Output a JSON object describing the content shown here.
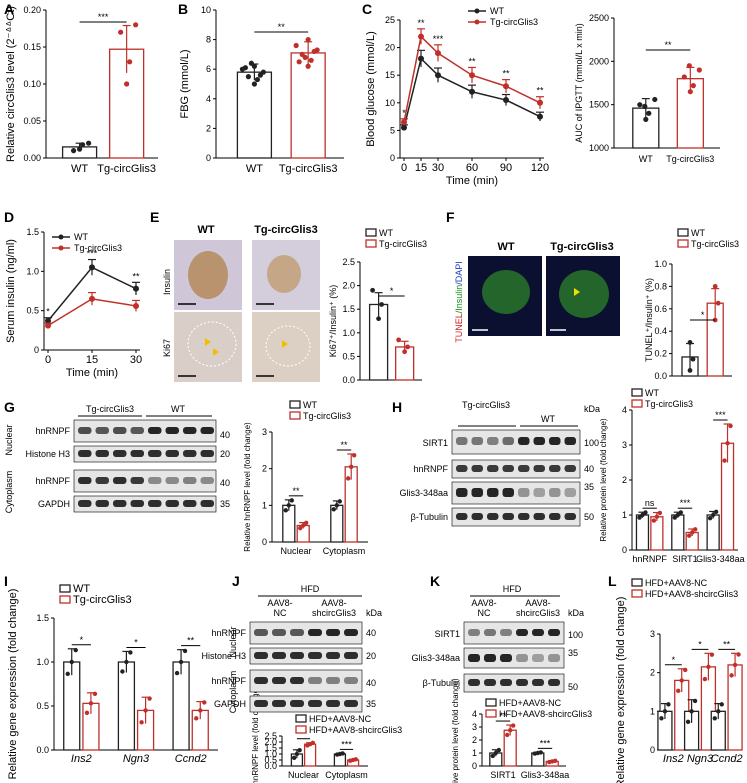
{
  "colors": {
    "wt": "#222222",
    "tg": "#c0302a",
    "blot_bg": "#e6e6e6",
    "if_bg": "#0b1030",
    "ihc_bg": "#d8cfd6"
  },
  "panels": {
    "A": {
      "letter": "A",
      "ylabel": "Relative circGlis3 level (2⁻ᐞᐞCt)",
      "sig": "***",
      "chart_data": {
        "type": "bar",
        "categories": [
          "WT",
          "Tg-circGlis3"
        ],
        "values": [
          0.015,
          0.147
        ],
        "errors": [
          0.005,
          0.032
        ],
        "points": [
          [
            0.012,
            0.018,
            0.01,
            0.02
          ],
          [
            0.1,
            0.13,
            0.17,
            0.18
          ]
        ],
        "ylim": [
          0,
          0.2
        ],
        "yticks": [
          "0.00",
          "0.05",
          "0.10",
          "0.15",
          "0.20"
        ]
      }
    },
    "B": {
      "letter": "B",
      "ylabel": "FBG (mmol/L)",
      "sig": "**",
      "chart_data": {
        "type": "bar",
        "categories": [
          "WT",
          "Tg-circGlis3"
        ],
        "values": [
          5.8,
          7.1
        ],
        "errors": [
          0.55,
          0.75
        ],
        "points": [
          [
            5.0,
            5.3,
            5.5,
            5.8,
            6.0,
            6.2,
            6.4,
            5.6,
            6.1
          ],
          [
            6.2,
            6.6,
            7.0,
            7.3,
            7.6,
            8.0,
            6.8,
            7.2,
            6.5
          ]
        ],
        "ylim": [
          0,
          10
        ],
        "yticks": [
          "0",
          "2",
          "4",
          "6",
          "8",
          "10"
        ]
      }
    },
    "C": {
      "letter": "C",
      "ylabel": "Blood glucose (mmol/L)",
      "xlabel": "Time (min)",
      "legend": [
        "WT",
        "Tg-circGlis3"
      ],
      "chart_data": {
        "type": "line",
        "x": [
          0,
          15,
          30,
          60,
          90,
          120
        ],
        "series": [
          {
            "name": "WT",
            "values": [
              5.5,
              18.0,
              15.0,
              12.0,
              10.5,
              7.5
            ],
            "errors": [
              0.5,
              1.5,
              1.3,
              1.2,
              1.0,
              0.8
            ]
          },
          {
            "name": "Tg-circGlis3",
            "values": [
              6.5,
              22.0,
              19.0,
              15.0,
              13.0,
              10.0
            ],
            "errors": [
              0.6,
              1.4,
              1.5,
              1.4,
              1.2,
              1.1
            ]
          }
        ],
        "sigs": [
          "*",
          "**",
          "***",
          "**",
          "**",
          "**"
        ],
        "ylim": [
          0,
          25
        ],
        "yticks": [
          "0",
          "5",
          "10",
          "15",
          "20",
          "25"
        ],
        "xticks": [
          "0",
          "15",
          "30",
          "60",
          "90",
          "120"
        ]
      }
    },
    "C2": {
      "ylabel": "AUC of IPGTT (mmol/L x min)",
      "sig": "**",
      "chart_data": {
        "type": "bar",
        "categories": [
          "WT",
          "Tg-circGlis3"
        ],
        "values": [
          1460,
          1800
        ],
        "errors": [
          110,
          130
        ],
        "points": [
          [
            1330,
            1400,
            1500,
            1560,
            1480
          ],
          [
            1650,
            1720,
            1820,
            1900,
            1950
          ]
        ],
        "ylim": [
          1000,
          2500
        ],
        "yticks": [
          "1000",
          "1500",
          "2000",
          "2500"
        ]
      }
    },
    "D": {
      "letter": "D",
      "ylabel": "Serum insulin (ng/ml)",
      "xlabel": "Time (min)",
      "legend": [
        "WT",
        "Tg-circGlis3"
      ],
      "chart_data": {
        "type": "line",
        "x": [
          0,
          15,
          30
        ],
        "series": [
          {
            "name": "WT",
            "values": [
              0.37,
              1.05,
              0.78
            ],
            "errors": [
              0.04,
              0.1,
              0.08
            ]
          },
          {
            "name": "Tg-circGlis3",
            "values": [
              0.31,
              0.65,
              0.56
            ],
            "errors": [
              0.03,
              0.08,
              0.07
            ]
          }
        ],
        "sigs": [
          "*",
          "***",
          "**"
        ],
        "ylim": [
          0,
          1.5
        ],
        "yticks": [
          "0",
          "0.5",
          "1.0",
          "1.5"
        ],
        "xticks": [
          "0",
          "15",
          "30"
        ]
      }
    },
    "E": {
      "letter": "E",
      "col_wt": "WT",
      "col_tg": "Tg-circGlis3",
      "row1": "Insulin",
      "row2": "Ki67",
      "legend": [
        "WT",
        "Tg-circGlis3"
      ],
      "ylabel": "Ki67⁺/Insulin⁺ (%)",
      "sig": "*",
      "chart_data": {
        "type": "bar",
        "categories": [
          "WT",
          "Tg-circGlis3"
        ],
        "values": [
          1.6,
          0.7
        ],
        "errors": [
          0.25,
          0.12
        ],
        "points": [
          [
            1.3,
            1.6,
            1.9
          ],
          [
            0.6,
            0.7,
            0.85
          ]
        ],
        "ylim": [
          0,
          2.5
        ],
        "yticks": [
          "0.0",
          "0.5",
          "1.0",
          "1.5",
          "2.0",
          "2.5"
        ]
      }
    },
    "F": {
      "letter": "F",
      "col_wt": "WT",
      "col_tg": "Tg-circGlis3",
      "side_tunel": "TUNEL",
      "side_ins": "/Insulin",
      "side_dapi": "/DAPI",
      "legend": [
        "WT",
        "Tg-circGlis3"
      ],
      "ylabel": "TUNEL⁺/Insulin⁺ (%)",
      "sig": "*",
      "chart_data": {
        "type": "bar",
        "categories": [
          "WT",
          "Tg-circGlis3"
        ],
        "values": [
          0.17,
          0.65
        ],
        "errors": [
          0.12,
          0.13
        ],
        "points": [
          [
            0.05,
            0.15,
            0.3
          ],
          [
            0.5,
            0.65,
            0.8
          ]
        ],
        "ylim": [
          0,
          1.0
        ],
        "yticks": [
          "0.0",
          "0.2",
          "0.4",
          "0.6",
          "0.8",
          "1.0"
        ]
      }
    },
    "G": {
      "letter": "G",
      "groups": [
        "Tg-circGlis3",
        "WT"
      ],
      "bands": [
        "hnRNPF",
        "Histone H3",
        "hnRNPF",
        "GAPDH"
      ],
      "markers": [
        "40",
        "20",
        "40",
        "35"
      ],
      "fractions": [
        "Nuclear",
        "Cytoplasm"
      ],
      "legend": [
        "WT",
        "Tg-circGlis3"
      ],
      "ylabel": "Relative hnRNPF level (fold change)",
      "sigs": [
        "**",
        "**"
      ],
      "chart_data": {
        "type": "bar",
        "categories": [
          "Nuclear",
          "Cytoplasm"
        ],
        "series": [
          {
            "name": "WT",
            "values": [
              1.0,
              1.0
            ],
            "errors": [
              0.15,
              0.12
            ]
          },
          {
            "name": "Tg-circGlis3",
            "values": [
              0.45,
              2.05
            ],
            "errors": [
              0.08,
              0.35
            ]
          }
        ],
        "ylim": [
          0,
          3
        ],
        "yticks": [
          "0",
          "1",
          "2",
          "3"
        ]
      }
    },
    "H": {
      "letter": "H",
      "groups": [
        "Tg-circGlis3",
        "WT"
      ],
      "kda": "kDa",
      "bands": [
        "SIRT1",
        "hnRNPF",
        "Glis3-348aa",
        "β-Tubulin"
      ],
      "markers": [
        "100",
        "40",
        "35",
        "50"
      ],
      "legend": [
        "WT",
        "Tg-circGlis3"
      ],
      "ylabel": "Relative protein level (fold change)",
      "sigs": [
        "ns",
        "***",
        "***"
      ],
      "chart_data": {
        "type": "bar",
        "categories": [
          "hnRNPF",
          "SIRT1",
          "Glis3-348aa"
        ],
        "series": [
          {
            "name": "WT",
            "values": [
              1.0,
              1.0,
              1.0
            ],
            "errors": [
              0.08,
              0.08,
              0.1
            ]
          },
          {
            "name": "Tg-circGlis3",
            "values": [
              0.95,
              0.5,
              3.05
            ],
            "errors": [
              0.12,
              0.1,
              0.55
            ]
          }
        ],
        "ylim": [
          0,
          4
        ],
        "yticks": [
          "0",
          "1",
          "2",
          "3",
          "4"
        ]
      }
    },
    "I": {
      "letter": "I",
      "legend": [
        "WT",
        "Tg-circGlis3"
      ],
      "ylabel": "Relative gene expression (fold change)",
      "sigs": [
        "*",
        "*",
        "**"
      ],
      "chart_data": {
        "type": "bar",
        "categories": [
          "Ins2",
          "Ngn3",
          "Ccnd2"
        ],
        "series": [
          {
            "name": "WT",
            "values": [
              1.0,
              1.0,
              1.0
            ],
            "errors": [
              0.15,
              0.12,
              0.14
            ]
          },
          {
            "name": "Tg-circGlis3",
            "values": [
              0.53,
              0.45,
              0.45
            ],
            "errors": [
              0.12,
              0.15,
              0.1
            ]
          }
        ],
        "ylim": [
          0,
          1.5
        ],
        "yticks": [
          "0.0",
          "0.5",
          "1.0",
          "1.5"
        ]
      }
    },
    "J": {
      "letter": "J",
      "diet": "HFD",
      "grp1": "AAV8-\nNC",
      "grp1a": "AAV8-",
      "grp1b": "NC",
      "grp2a": "AAV8-",
      "grp2b": "shcircGlis3",
      "kda": "kDa",
      "bands": [
        "hnRNPF",
        "Histone H3",
        "hnRNPF",
        "GAPDH"
      ],
      "markers": [
        "40",
        "20",
        "40",
        "35"
      ],
      "fractions": [
        "Nuclear",
        "Cytoplasm"
      ],
      "legend": [
        "HFD+AAV8-NC",
        "HFD+AAV8-shcircGlis3"
      ],
      "ylabel": "Relative hnRNPF level (fold change)",
      "sigs": [
        "**",
        "***"
      ],
      "chart_data": {
        "type": "bar",
        "categories": [
          "Nuclear",
          "Cytoplasm"
        ],
        "series": [
          {
            "name": "HFD+AAV8-NC",
            "values": [
              1.0,
              1.0
            ],
            "errors": [
              0.35,
              0.05
            ]
          },
          {
            "name": "HFD+AAV8-shcircGlis3",
            "values": [
              1.82,
              0.5
            ],
            "errors": [
              0.12,
              0.06
            ]
          }
        ],
        "ylim": [
          0,
          2.5
        ],
        "yticks": [
          "0.0",
          "0.5",
          "1.0",
          "1.5",
          "2.0",
          "2.5"
        ]
      }
    },
    "K": {
      "letter": "K",
      "diet": "HFD",
      "grp1a": "AAV8-",
      "grp1b": "NC",
      "grp2a": "AAV8-",
      "grp2b": "shcircGlis3",
      "kda": "kDa",
      "bands": [
        "SIRT1",
        "Glis3-348aa",
        "β-Tubulin"
      ],
      "markers": [
        "100",
        "35",
        "50"
      ],
      "legend": [
        "HFD+AAV8-NC",
        "HFD+AAV8-shcircGlis3"
      ],
      "ylabel": "Relative protein level (fold change)",
      "sigs": [
        "**",
        "***"
      ],
      "chart_data": {
        "type": "bar",
        "categories": [
          "SIRT1",
          "Glis3-348aa"
        ],
        "series": [
          {
            "name": "HFD+AAV8-NC",
            "values": [
              1.0,
              1.0
            ],
            "errors": [
              0.25,
              0.05
            ]
          },
          {
            "name": "HFD+AAV8-shcircGlis3",
            "values": [
              2.75,
              0.35
            ],
            "errors": [
              0.4,
              0.05
            ]
          }
        ],
        "ylim": [
          0,
          4
        ],
        "yticks": [
          "0",
          "1",
          "2",
          "3",
          "4"
        ]
      }
    },
    "L": {
      "letter": "L",
      "legend": [
        "HFD+AAV8-NC",
        "HFD+AAV8-shcircGlis3"
      ],
      "ylabel": "Relative gene expression (fold change)",
      "sigs": [
        "*",
        "*",
        "**"
      ],
      "chart_data": {
        "type": "bar",
        "categories": [
          "Ins2",
          "Ngn3",
          "Ccnd2"
        ],
        "series": [
          {
            "name": "HFD+AAV8-NC",
            "values": [
              1.0,
              1.0,
              1.0
            ],
            "errors": [
              0.2,
              0.3,
              0.2
            ]
          },
          {
            "name": "HFD+AAV8-shcircGlis3",
            "values": [
              1.8,
              2.15,
              2.2
            ],
            "errors": [
              0.3,
              0.35,
              0.3
            ]
          }
        ],
        "ylim": [
          0,
          3
        ],
        "yticks": [
          "0",
          "1",
          "2",
          "3"
        ]
      }
    }
  }
}
